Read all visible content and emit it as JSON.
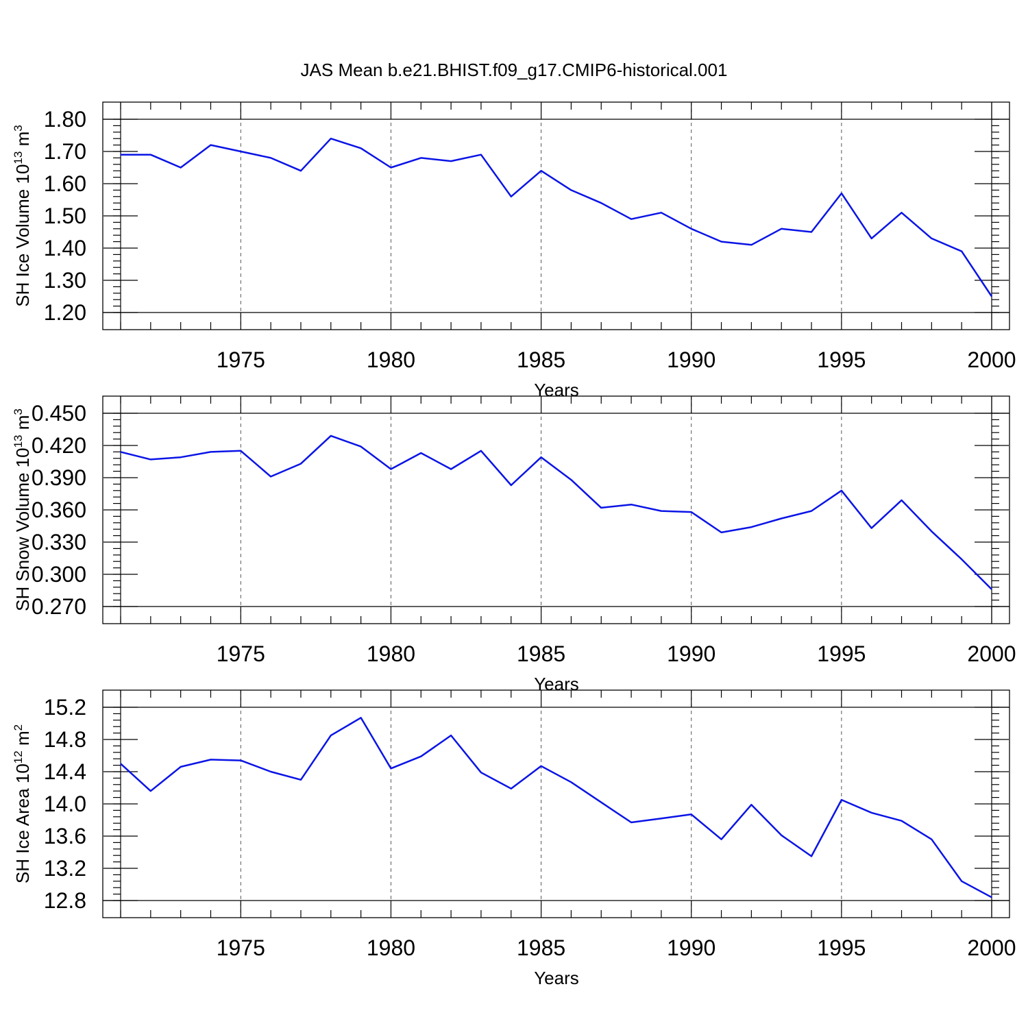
{
  "figure_title": "JAS Mean b.e21.BHIST.f09_g17.CMIP6-historical.001",
  "colors": {
    "series": "#0a14e6",
    "grid": "#555555",
    "axis": "#000000"
  },
  "chart_data": [
    {
      "type": "line",
      "ylabel": {
        "pre": "SH Ice Volume 10",
        "sup": "13",
        "mid": " m",
        "sup2": "3"
      },
      "xlabel": "Years",
      "xlim": [
        1971,
        2000
      ],
      "ylim": [
        1.2,
        1.8
      ],
      "yticks": [
        1.2,
        1.3,
        1.4,
        1.5,
        1.6,
        1.7,
        1.8
      ],
      "ytick_labels": [
        "1.20",
        "1.30",
        "1.40",
        "1.50",
        "1.60",
        "1.70",
        "1.80"
      ],
      "ytick_minor_step": 0.02,
      "xticks": [
        1975,
        1980,
        1985,
        1990,
        1995,
        2000
      ],
      "xtick_labels": [
        "1975",
        "1980",
        "1985",
        "1990",
        "1995",
        "2000"
      ],
      "grid": "x-dashed",
      "series": [
        {
          "x": [
            1971,
            1972,
            1973,
            1974,
            1975,
            1976,
            1977,
            1978,
            1979,
            1980,
            1981,
            1982,
            1983,
            1984,
            1985,
            1986,
            1987,
            1988,
            1989,
            1990,
            1991,
            1992,
            1993,
            1994,
            1995,
            1996,
            1997,
            1998,
            1999,
            2000
          ],
          "values": [
            1.69,
            1.69,
            1.65,
            1.72,
            1.7,
            1.68,
            1.64,
            1.74,
            1.71,
            1.65,
            1.68,
            1.67,
            1.69,
            1.56,
            1.64,
            1.58,
            1.54,
            1.49,
            1.51,
            1.46,
            1.42,
            1.41,
            1.46,
            1.45,
            1.57,
            1.43,
            1.51,
            1.43,
            1.39,
            1.25
          ]
        }
      ]
    },
    {
      "type": "line",
      "ylabel": {
        "pre": "SH Snow Volume 10",
        "sup": "13",
        "mid": " m",
        "sup2": "3"
      },
      "xlabel": "Years",
      "xlim": [
        1971,
        2000
      ],
      "ylim": [
        0.27,
        0.45
      ],
      "yticks": [
        0.27,
        0.3,
        0.33,
        0.36,
        0.39,
        0.42,
        0.45
      ],
      "ytick_labels": [
        "0.270",
        "0.300",
        "0.330",
        "0.360",
        "0.390",
        "0.420",
        "0.450"
      ],
      "ytick_minor_step": 0.006,
      "xticks": [
        1975,
        1980,
        1985,
        1990,
        1995,
        2000
      ],
      "xtick_labels": [
        "1975",
        "1980",
        "1985",
        "1990",
        "1995",
        "2000"
      ],
      "grid": "x-dashed",
      "series": [
        {
          "x": [
            1971,
            1972,
            1973,
            1974,
            1975,
            1976,
            1977,
            1978,
            1979,
            1980,
            1981,
            1982,
            1983,
            1984,
            1985,
            1986,
            1987,
            1988,
            1989,
            1990,
            1991,
            1992,
            1993,
            1994,
            1995,
            1996,
            1997,
            1998,
            1999,
            2000
          ],
          "values": [
            0.414,
            0.407,
            0.409,
            0.414,
            0.415,
            0.391,
            0.403,
            0.429,
            0.419,
            0.398,
            0.413,
            0.398,
            0.415,
            0.383,
            0.409,
            0.388,
            0.362,
            0.365,
            0.359,
            0.358,
            0.339,
            0.344,
            0.352,
            0.359,
            0.378,
            0.343,
            0.369,
            0.34,
            0.314,
            0.286
          ]
        }
      ]
    },
    {
      "type": "line",
      "ylabel": {
        "pre": "SH Ice Area 10",
        "sup": "12",
        "mid": " m",
        "sup2": "2"
      },
      "xlabel": "Years",
      "xlim": [
        1971,
        2000
      ],
      "ylim": [
        12.8,
        15.2
      ],
      "yticks": [
        12.8,
        13.2,
        13.6,
        14.0,
        14.4,
        14.8,
        15.2
      ],
      "ytick_labels": [
        "12.8",
        "13.2",
        "13.6",
        "14.0",
        "14.4",
        "14.8",
        "15.2"
      ],
      "ytick_minor_step": 0.08,
      "xticks": [
        1975,
        1980,
        1985,
        1990,
        1995,
        2000
      ],
      "xtick_labels": [
        "1975",
        "1980",
        "1985",
        "1990",
        "1995",
        "2000"
      ],
      "grid": "x-dashed",
      "series": [
        {
          "x": [
            1971,
            1972,
            1973,
            1974,
            1975,
            1976,
            1977,
            1978,
            1979,
            1980,
            1981,
            1982,
            1983,
            1984,
            1985,
            1986,
            1987,
            1988,
            1989,
            1990,
            1991,
            1992,
            1993,
            1994,
            1995,
            1996,
            1997,
            1998,
            1999,
            2000
          ],
          "values": [
            14.5,
            14.16,
            14.46,
            14.55,
            14.54,
            14.4,
            14.3,
            14.85,
            15.07,
            14.44,
            14.59,
            14.85,
            14.39,
            14.19,
            14.47,
            14.27,
            14.02,
            13.77,
            13.82,
            13.87,
            13.56,
            13.99,
            13.61,
            13.35,
            14.05,
            13.89,
            13.79,
            13.56,
            13.04,
            12.84
          ]
        }
      ]
    }
  ]
}
